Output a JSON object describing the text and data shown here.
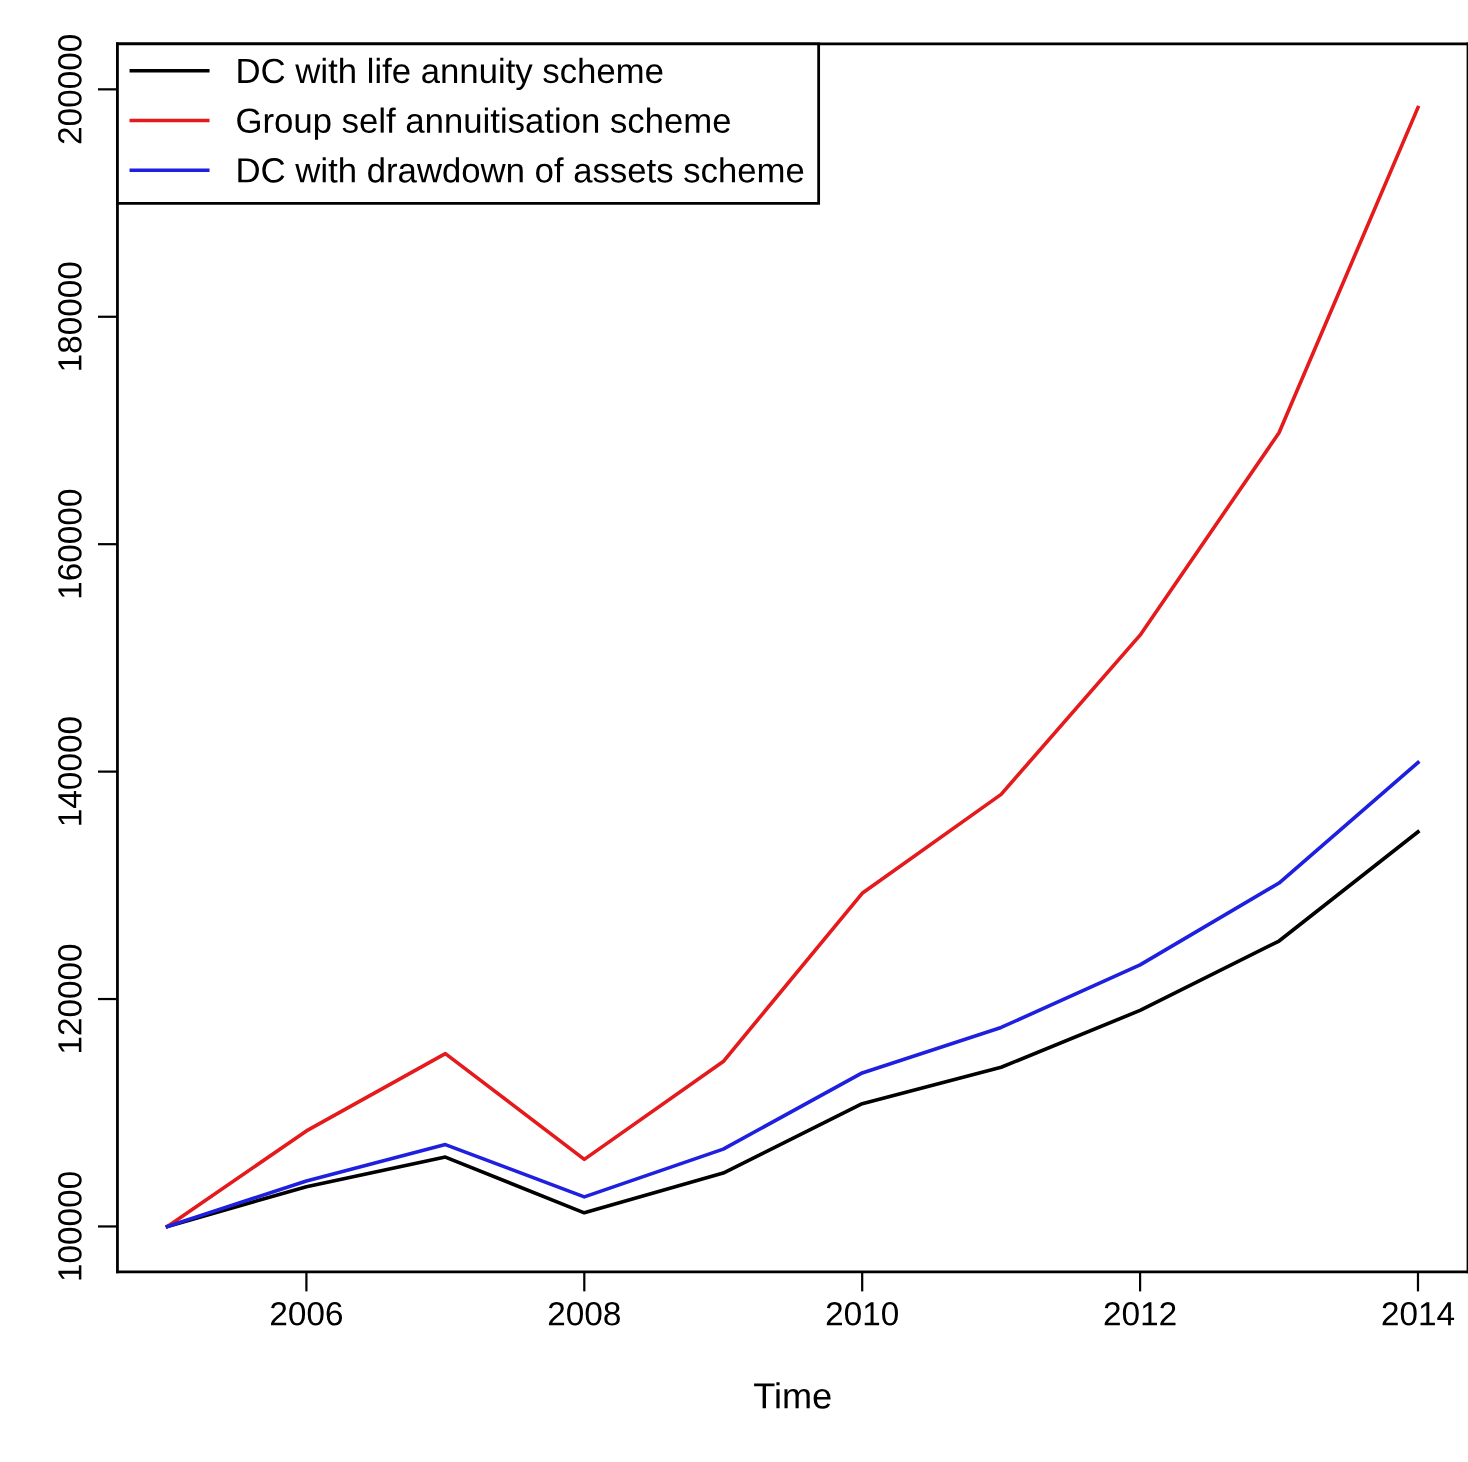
{
  "chart_data": {
    "type": "line",
    "xlabel": "Time",
    "x": [
      2005,
      2006,
      2007,
      2008,
      2009,
      2010,
      2011,
      2012,
      2013,
      2014
    ],
    "series": [
      {
        "name": "DC with life annuity scheme",
        "color": "#000000",
        "values": [
          100000,
          103500,
          106100,
          101200,
          104700,
          110800,
          114000,
          119000,
          125100,
          134700
        ]
      },
      {
        "name": "Group self annuitisation scheme",
        "color": "#e41a1c",
        "values": [
          100000,
          108400,
          115200,
          105900,
          114500,
          129300,
          138000,
          152000,
          169800,
          198400
        ]
      },
      {
        "name": "DC with drawdown of assets scheme",
        "color": "#1f1fe0",
        "values": [
          100000,
          104000,
          107200,
          102600,
          106800,
          113500,
          117500,
          123000,
          130200,
          140800
        ]
      }
    ],
    "xlim": [
      2004.64,
      2014.36
    ],
    "ylim": [
      96000,
      204000
    ],
    "xticks": [
      2006,
      2008,
      2010,
      2012,
      2014
    ],
    "yticks": [
      100000,
      120000,
      140000,
      160000,
      180000,
      200000
    ],
    "grid": false,
    "legend": "top left",
    "marker": "none",
    "line_style": "solid"
  }
}
